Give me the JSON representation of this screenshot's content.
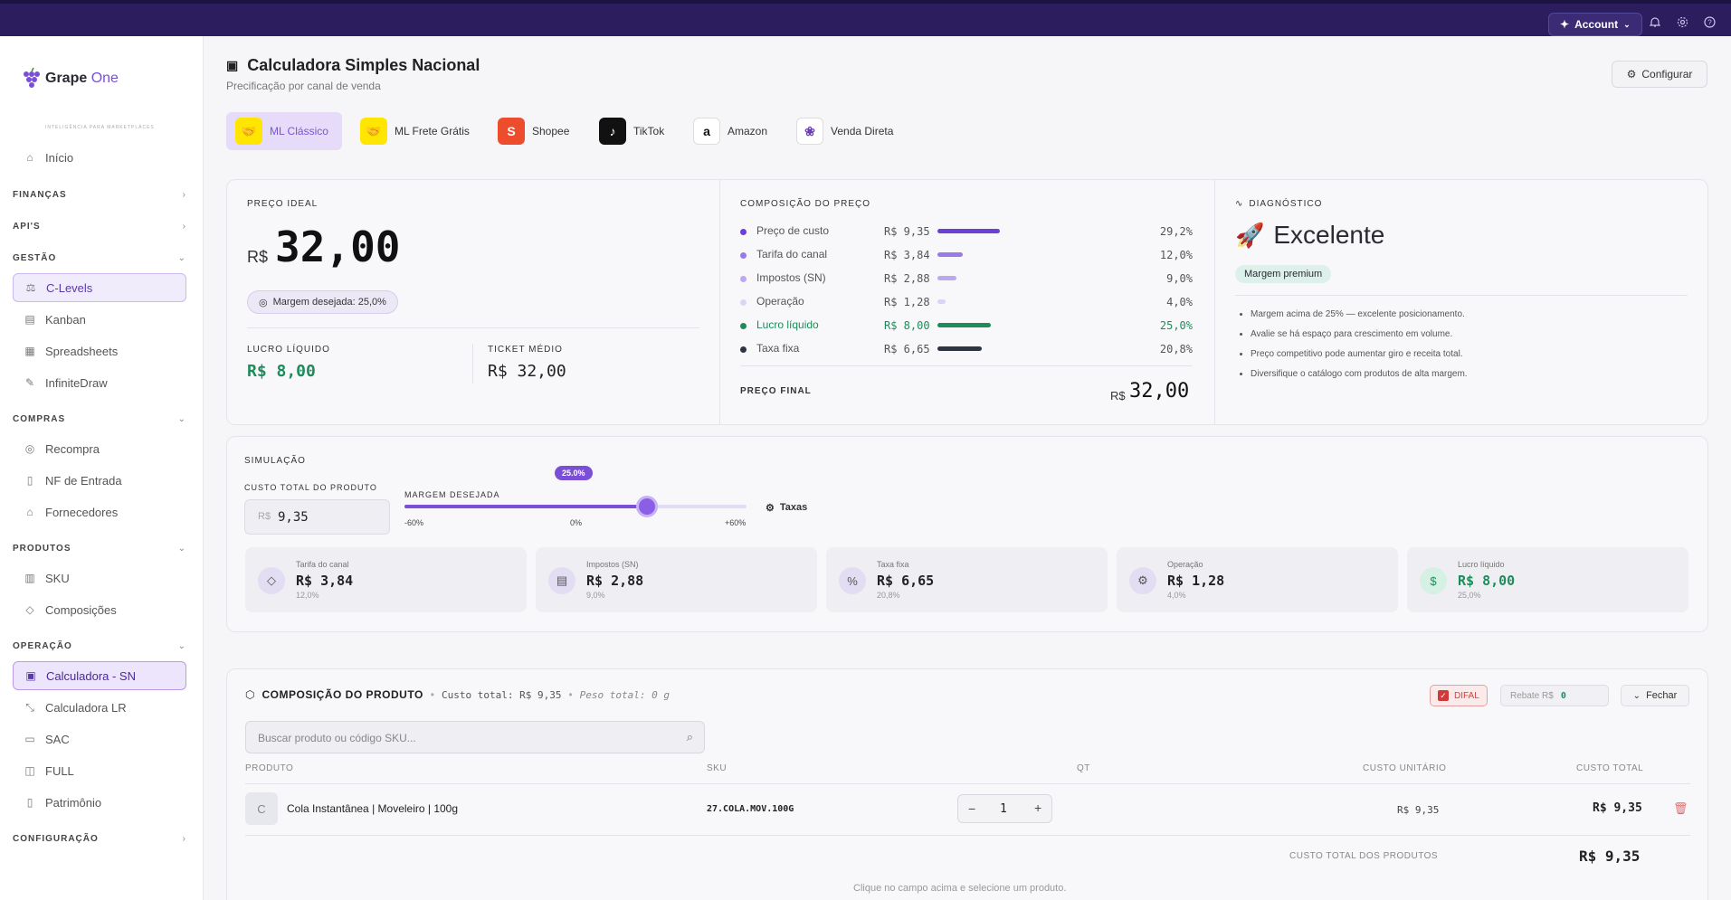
{
  "topbar": {
    "account_label": "Account"
  },
  "brand": {
    "name_a": "Grape",
    "name_b": "One",
    "tagline": "INTELIGÊNCIA PARA MARKETPLACES"
  },
  "sidebar": {
    "inicio": "Início",
    "sections": {
      "financas": "FINANÇAS",
      "apis": "API'S",
      "gestao": "GESTÃO",
      "compras": "COMPRAS",
      "produtos": "PRODUTOS",
      "operacao": "OPERAÇÃO",
      "configuracao": "CONFIGURAÇÃO"
    },
    "gestao_items": [
      "C-Levels",
      "Kanban",
      "Spreadsheets",
      "InfiniteDraw"
    ],
    "compras_items": [
      "Recompra",
      "NF de Entrada",
      "Fornecedores"
    ],
    "produtos_items": [
      "SKU",
      "Composições"
    ],
    "operacao_items": [
      "Calculadora - SN",
      "Calculadora LR",
      "SAC",
      "FULL",
      "Patrimônio"
    ]
  },
  "header": {
    "title": "Calculadora Simples Nacional",
    "subtitle": "Precificação por canal de venda",
    "config_button": "Configurar"
  },
  "channels": [
    "ML Clássico",
    "ML Frete Grátis",
    "Shopee",
    "TikTok",
    "Amazon",
    "Venda Direta"
  ],
  "ideal": {
    "label": "PREÇO IDEAL",
    "currency": "R$",
    "price": "32,00",
    "margin_pill": "Margem desejada: 25,0%",
    "lucro_label": "LUCRO LÍQUIDO",
    "lucro_value": "R$ 8,00",
    "ticket_label": "TICKET MÉDIO",
    "ticket_value": "R$ 32,00"
  },
  "composition": {
    "label": "COMPOSIÇÃO DO PREÇO",
    "rows": [
      {
        "name": "Preço de custo",
        "value": "R$ 9,35",
        "pct": "29,2%",
        "share": 0.292,
        "color": "#6d3fd9"
      },
      {
        "name": "Tarifa do canal",
        "value": "R$ 3,84",
        "pct": "12,0%",
        "share": 0.12,
        "color": "#9a7ae6"
      },
      {
        "name": "Impostos (SN)",
        "value": "R$ 2,88",
        "pct": "9,0%",
        "share": 0.09,
        "color": "#bca8ef"
      },
      {
        "name": "Operação",
        "value": "R$ 1,28",
        "pct": "4,0%",
        "share": 0.04,
        "color": "#ddd3f7"
      },
      {
        "name": "Lucro líquido",
        "value": "R$ 8,00",
        "pct": "25,0%",
        "share": 0.25,
        "color": "#1e8c5a"
      },
      {
        "name": "Taxa fixa",
        "value": "R$ 6,65",
        "pct": "20,8%",
        "share": 0.208,
        "color": "#2d3442"
      }
    ],
    "final_label": "PREÇO FINAL",
    "final_currency": "R$",
    "final_value": "32,00"
  },
  "diagnostic": {
    "label": "DIAGNÓSTICO",
    "status": "Excelente",
    "badge": "Margem premium",
    "bullets": [
      "Margem acima de 25% — excelente posicionamento.",
      "Avalie se há espaço para crescimento em volume.",
      "Preço competitivo pode aumentar giro e receita total.",
      "Diversifique o catálogo com produtos de alta margem."
    ]
  },
  "simulation": {
    "label": "SIMULAÇÃO",
    "cost_label": "CUSTO TOTAL DO PRODUTO",
    "cost_prefix": "R$",
    "cost_value": "9,35",
    "margin_label": "MARGEM DESEJADA",
    "margin_badge": "25.0%",
    "margin_level": 0.25,
    "slider_min": "-60%",
    "slider_mid": "0%",
    "slider_max": "+60%",
    "taxas_label": "Taxas",
    "cards": [
      {
        "label": "Tarifa do canal",
        "value": "R$ 3,84",
        "pct": "12,0%"
      },
      {
        "label": "Impostos (SN)",
        "value": "R$ 2,88",
        "pct": "9,0%"
      },
      {
        "label": "Taxa fixa",
        "value": "R$ 6,65",
        "pct": "20,8%"
      },
      {
        "label": "Operação",
        "value": "R$ 1,28",
        "pct": "4,0%"
      },
      {
        "label": "Lucro líquido",
        "value": "R$ 8,00",
        "pct": "25,0%"
      }
    ]
  },
  "product": {
    "title": "COMPOSIÇÃO DO PRODUTO",
    "meta_cost": "Custo total: R$ 9,35",
    "meta_weight": "Peso total: 0 g",
    "difal_label": "DIFAL",
    "rebate_label": "Rebate R$",
    "rebate_value": "0",
    "close_label": "Fechar",
    "search_placeholder": "Buscar produto ou código SKU...",
    "columns": [
      "PRODUTO",
      "SKU",
      "QT",
      "CUSTO UNITÁRIO",
      "CUSTO TOTAL"
    ],
    "row": {
      "initial": "C",
      "name": "Cola Instantânea | Moveleiro | 100g",
      "sku": "27.COLA.MOV.100G",
      "qty": "1",
      "unit": "R$ 9,35",
      "total": "R$ 9,35"
    },
    "total_label": "CUSTO TOTAL DOS PRODUTOS",
    "total_value": "R$ 9,35",
    "hint": "Clique no campo acima e selecione um produto."
  }
}
